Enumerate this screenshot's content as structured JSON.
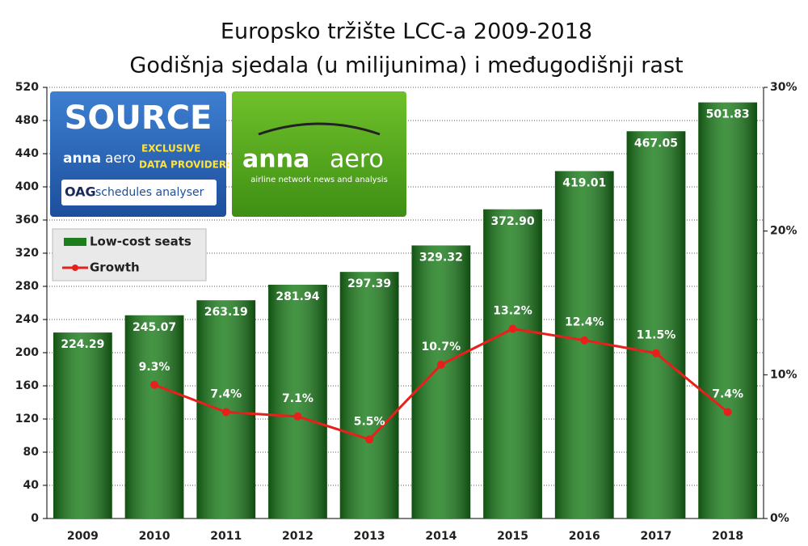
{
  "chart_data": {
    "type": "bar_line",
    "title": "Europsko tržište LCC-a 2009-2018",
    "subtitle": "Godišnja sjedala (u milijunima) i međugodišnji rast",
    "categories": [
      "2009",
      "2010",
      "2011",
      "2012",
      "2013",
      "2014",
      "2015",
      "2016",
      "2017",
      "2018"
    ],
    "series": [
      {
        "name": "Low-cost seats",
        "type": "bar",
        "color": "#1b7d1b",
        "values": [
          224.29,
          245.07,
          263.19,
          281.94,
          297.39,
          329.32,
          372.9,
          419.01,
          467.05,
          501.83
        ],
        "value_labels": [
          "224.29",
          "245.07",
          "263.19",
          "281.94",
          "297.39",
          "329.32",
          "372.90",
          "419.01",
          "467.05",
          "501.83"
        ]
      },
      {
        "name": "Growth",
        "type": "line",
        "axis": "y2",
        "color": "#e8201c",
        "values": [
          null,
          9.3,
          7.4,
          7.1,
          5.5,
          10.7,
          13.2,
          12.4,
          11.5,
          7.4
        ],
        "value_labels": [
          null,
          "9.3%",
          "7.4%",
          "7.1%",
          "5.5%",
          "10.7%",
          "13.2%",
          "12.4%",
          "11.5%",
          "7.4%"
        ]
      }
    ],
    "ylim": [
      0,
      520
    ],
    "yticks": [
      0,
      40,
      80,
      120,
      160,
      200,
      240,
      280,
      320,
      360,
      400,
      440,
      480,
      520
    ],
    "y2lim": [
      0,
      30
    ],
    "y2ticks": [
      {
        "value": 0,
        "label": "0%"
      },
      {
        "value": 10,
        "label": "10%"
      },
      {
        "value": 20,
        "label": "20%"
      },
      {
        "value": 30,
        "label": "30%"
      }
    ],
    "grid": true,
    "legend": "upper left",
    "annotations": [
      "SOURCE",
      "anna",
      "aero",
      "EXCLUSIVE",
      "DATA PROVIDER:",
      "OAG",
      "schedules analyser",
      "anna",
      "aero",
      "airline network news and analysis"
    ]
  }
}
